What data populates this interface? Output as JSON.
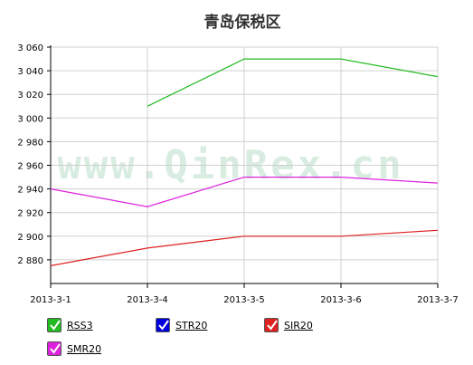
{
  "chart_data": {
    "type": "line",
    "title": "青岛保税区",
    "watermark": "www.QinRex.cn",
    "xlabel": "",
    "ylabel": "",
    "categories": [
      "2013-3-1",
      "2013-3-4",
      "2013-3-5",
      "2013-3-6",
      "2013-3-7"
    ],
    "ylim": [
      2860,
      3060
    ],
    "yticks": [
      2880,
      2900,
      2920,
      2940,
      2960,
      2980,
      3000,
      3020,
      3040,
      3060
    ],
    "ytick_labels": [
      "2 880",
      "2 900",
      "2 920",
      "2 940",
      "2 960",
      "2 980",
      "3 000",
      "3 020",
      "3 040",
      "3 060"
    ],
    "grid": true,
    "legend_position": "bottom-left",
    "series": [
      {
        "name": "RSS3",
        "color": "#22bb22",
        "values": [
          null,
          3010,
          3050,
          3050,
          3035
        ]
      },
      {
        "name": "STR20",
        "color": "#0000dd",
        "values": [
          null,
          null,
          null,
          null,
          null
        ]
      },
      {
        "name": "SIR20",
        "color": "#dd2222",
        "values": [
          2875,
          2890,
          2900,
          2900,
          2905
        ]
      },
      {
        "name": "SMR20",
        "color": "#dd22dd",
        "values": [
          2940,
          2925,
          2950,
          2950,
          2945
        ]
      }
    ]
  }
}
